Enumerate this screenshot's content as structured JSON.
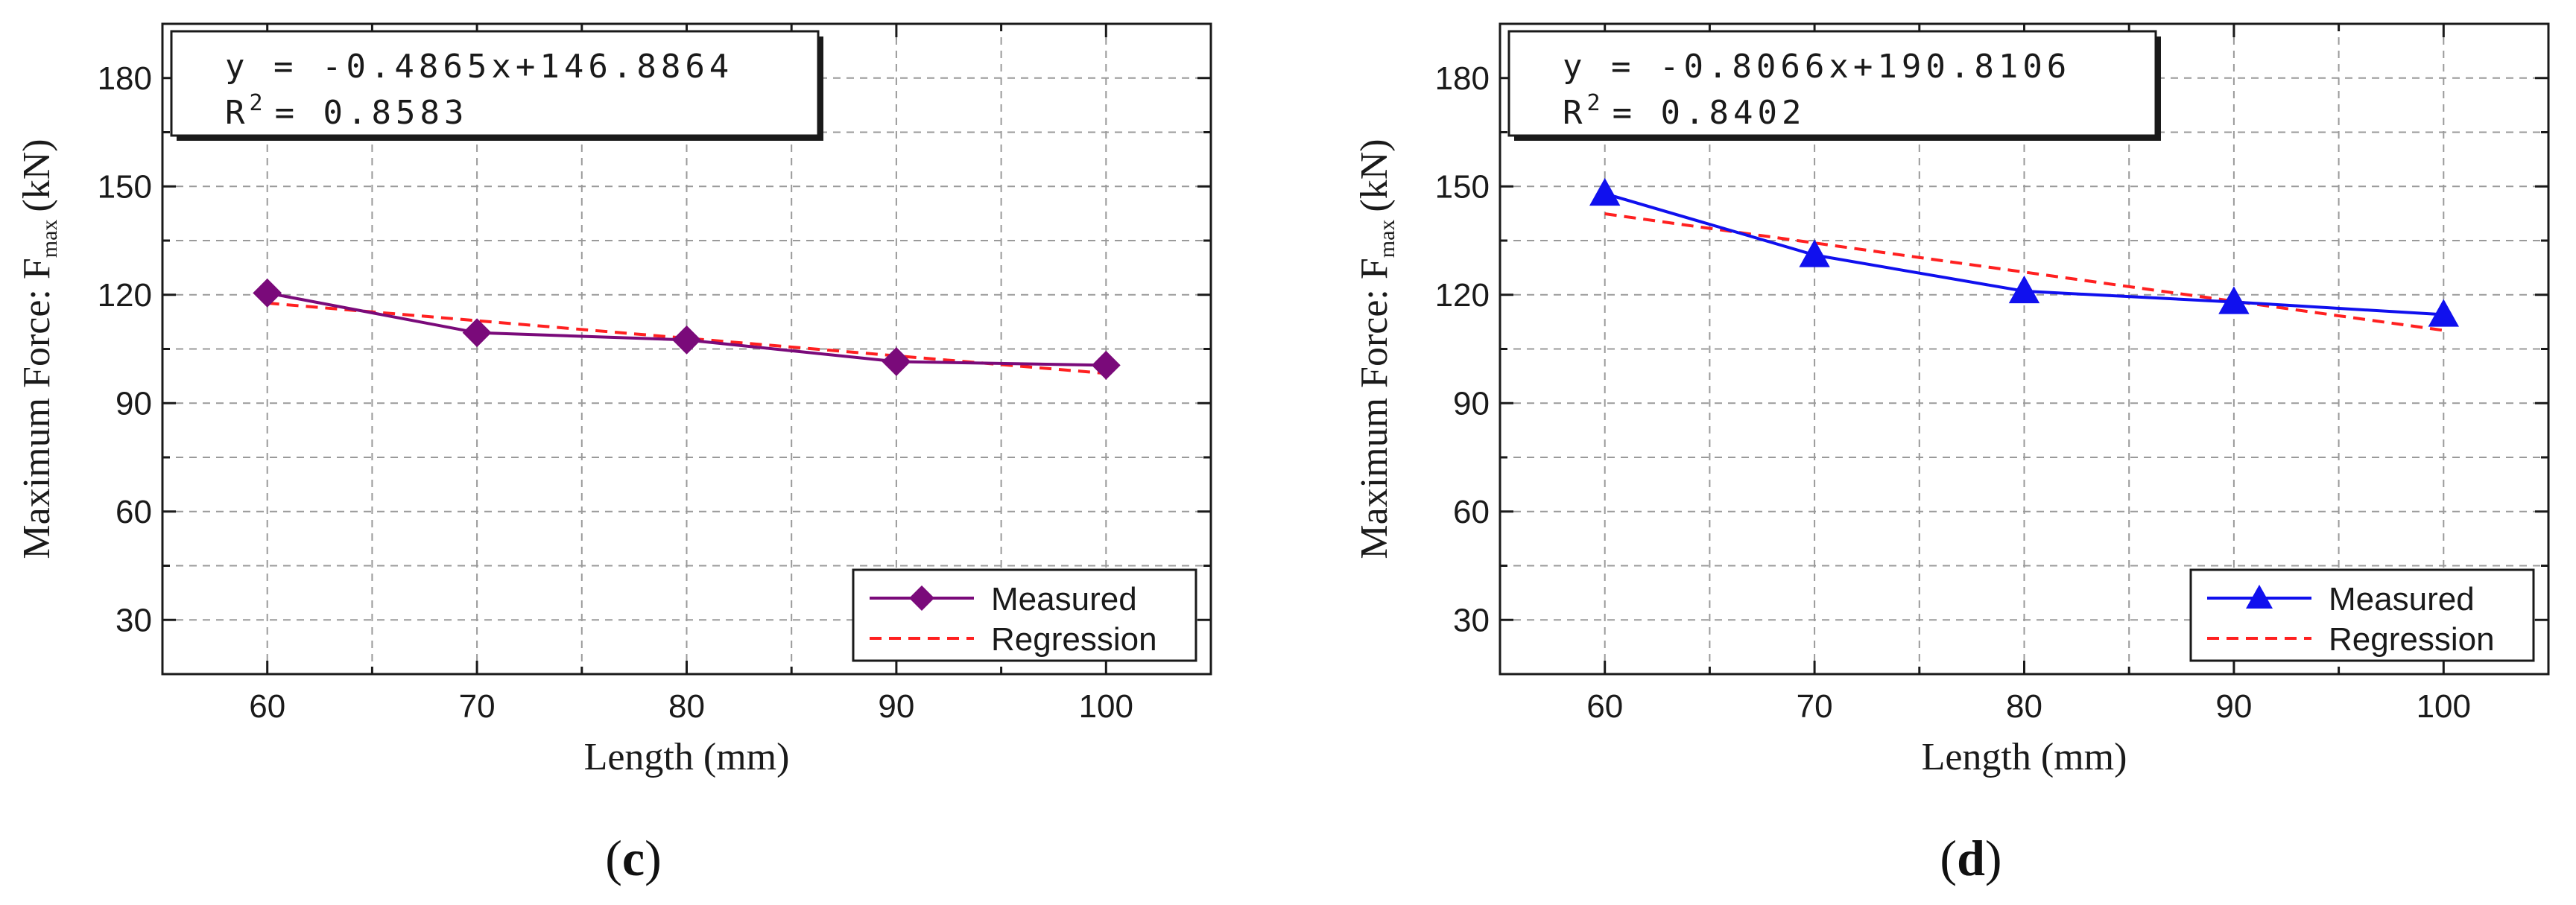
{
  "colors": {
    "axis": "#1a1a1a",
    "grid": "#9a9a9a",
    "regression": "#ff2020",
    "measured_c": "#7a0a7a",
    "measured_d": "#1010ee"
  },
  "chart_data": [
    {
      "id": "c",
      "type": "line",
      "panel_label": "(c)",
      "panel_label_bold": "c",
      "xlabel": "Length (mm)",
      "ylabel": "Maximum Force: F",
      "ylabel_sub": "max",
      "ylabel_unit": "(kN)",
      "xlim": [
        55,
        105
      ],
      "ylim": [
        15,
        195
      ],
      "x_ticks": [
        60,
        70,
        80,
        90,
        100
      ],
      "y_ticks": [
        30,
        60,
        90,
        120,
        150,
        180
      ],
      "grid": true,
      "equation_line1": "y = -0.4865x+146.8864",
      "equation_line2_prefix": "R",
      "equation_line2_sup": "2",
      "equation_line2_value": "= 0.8583",
      "legend_position": "bottom-right",
      "series": [
        {
          "name": "Measured",
          "marker": "diamond",
          "color": "#7a0a7a",
          "x": [
            60,
            70,
            80,
            90,
            100
          ],
          "y": [
            120.5,
            109.5,
            107.5,
            101.5,
            100.5
          ]
        },
        {
          "name": "Regression",
          "style": "dashed",
          "color": "#ff2020",
          "slope": -0.4865,
          "intercept": 146.8864,
          "x_range": [
            60,
            100
          ]
        }
      ]
    },
    {
      "id": "d",
      "type": "line",
      "panel_label": "(d)",
      "panel_label_bold": "d",
      "xlabel": "Length (mm)",
      "ylabel": "Maximum Force: F",
      "ylabel_sub": "max",
      "ylabel_unit": "(kN)",
      "xlim": [
        55,
        105
      ],
      "ylim": [
        15,
        195
      ],
      "x_ticks": [
        60,
        70,
        80,
        90,
        100
      ],
      "y_ticks": [
        30,
        60,
        90,
        120,
        150,
        180
      ],
      "grid": true,
      "equation_line1": "y = -0.8066x+190.8106",
      "equation_line2_prefix": "R",
      "equation_line2_sup": "2",
      "equation_line2_value": "= 0.8402",
      "legend_position": "bottom-right",
      "series": [
        {
          "name": "Measured",
          "marker": "triangle",
          "color": "#1010ee",
          "x": [
            60,
            70,
            80,
            90,
            100
          ],
          "y": [
            148,
            131,
            121,
            118,
            114.5
          ]
        },
        {
          "name": "Regression",
          "style": "dashed",
          "color": "#ff2020",
          "slope": -0.8066,
          "intercept": 190.8106,
          "x_range": [
            60,
            100
          ]
        }
      ]
    }
  ]
}
